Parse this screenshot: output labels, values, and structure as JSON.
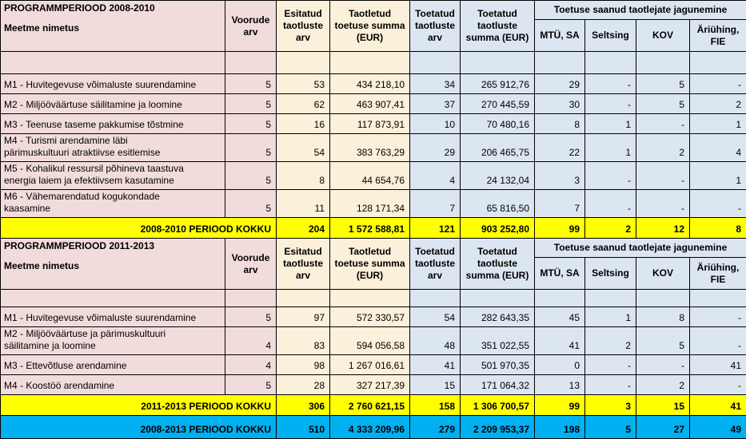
{
  "colors": {
    "measure_pink": "#F2DCDB",
    "applied_cream": "#FBF0D9",
    "supported_blue": "#DCE6F1",
    "period_total_yellow": "#FFFF00",
    "grand_total_cyan": "#00B0F0",
    "border": "#000000"
  },
  "headers": {
    "measure": "Meetme nimetus",
    "vooruded": "Voorude arv",
    "esitatud": "Esitatud taotluste arv",
    "taotletud": "Taotletud toetuse summa (EUR)",
    "toetatud_arv": "Toetatud taotluste arv",
    "toetatud_summa": "Toetatud taotluste summa (EUR)",
    "group": "Toetuse saanud taotlejate jagunemine",
    "sub": [
      "MTÜ, SA",
      "Seltsing",
      "KOV",
      "Äriühing, FIE"
    ]
  },
  "sections": [
    {
      "period_title": "PROGRAMMPERIOOD 2008-2010",
      "rows": [
        [
          "M1 - Huvitegevuse võimaluste suurendamine",
          "5",
          "53",
          "434 218,10",
          "34",
          "265 912,76",
          "29",
          "-",
          "5",
          "-"
        ],
        [
          "M2 - Miljööväärtuse säilitamine ja loomine",
          "5",
          "62",
          "463 907,41",
          "37",
          "270 445,59",
          "30",
          "-",
          "5",
          "2"
        ],
        [
          "M3 - Teenuse taseme pakkumise tõstmine",
          "5",
          "16",
          "117 873,91",
          "10",
          "70 480,16",
          "8",
          "1",
          "-",
          "1"
        ],
        [
          "M4 - Turismi arendamine läbi\npärimuskultuuri atraktiivse esitlemise",
          "5",
          "54",
          "383 763,29",
          "29",
          "206 465,75",
          "22",
          "1",
          "2",
          "4"
        ],
        [
          "M5 - Kohalikul ressursil põhineva taastuva\nenergia laiem ja efektiivsem kasutamine",
          "5",
          "8",
          "44 654,76",
          "4",
          "24 132,04",
          "3",
          "-",
          "-",
          "1"
        ],
        [
          "M6 - Vähemarendatud kogukondade\nkaasamine",
          "5",
          "11",
          "128 171,34",
          "7",
          "65 816,50",
          "7",
          "-",
          "-",
          "-"
        ]
      ],
      "total": [
        "2008-2010 PERIOOD KOKKU",
        "204",
        "1 572 588,81",
        "121",
        "903 252,80",
        "99",
        "2",
        "12",
        "8"
      ]
    },
    {
      "period_title": "PROGRAMMPERIOOD 2011-2013",
      "rows": [
        [
          "M1 - Huvitegevuse võimaluste suurendamine",
          "5",
          "97",
          "572 330,57",
          "54",
          "282 643,35",
          "45",
          "1",
          "8",
          "-"
        ],
        [
          "M2 - Miljööväärtuse ja pärimuskultuuri\nsäilitamine ja loomine",
          "4",
          "83",
          "594 056,58",
          "48",
          "351 022,55",
          "41",
          "2",
          "5",
          "-"
        ],
        [
          "M3 - Ettevõtluse arendamine",
          "4",
          "98",
          "1 267 016,61",
          "41",
          "501 970,35",
          "0",
          "-",
          "-",
          "41"
        ],
        [
          "M4 - Koostöö arendamine",
          "5",
          "28",
          "327 217,39",
          "15",
          "171 064,32",
          "13",
          "-",
          "2",
          "-"
        ]
      ],
      "total": [
        "2011-2013 PERIOOD KOKKU",
        "306",
        "2 760 621,15",
        "158",
        "1 306 700,57",
        "99",
        "3",
        "15",
        "41"
      ]
    }
  ],
  "grand_total": [
    "2008-2013 PERIOOD KOKKU",
    "510",
    "4 333 209,96",
    "279",
    "2 209 953,37",
    "198",
    "5",
    "27",
    "49"
  ]
}
